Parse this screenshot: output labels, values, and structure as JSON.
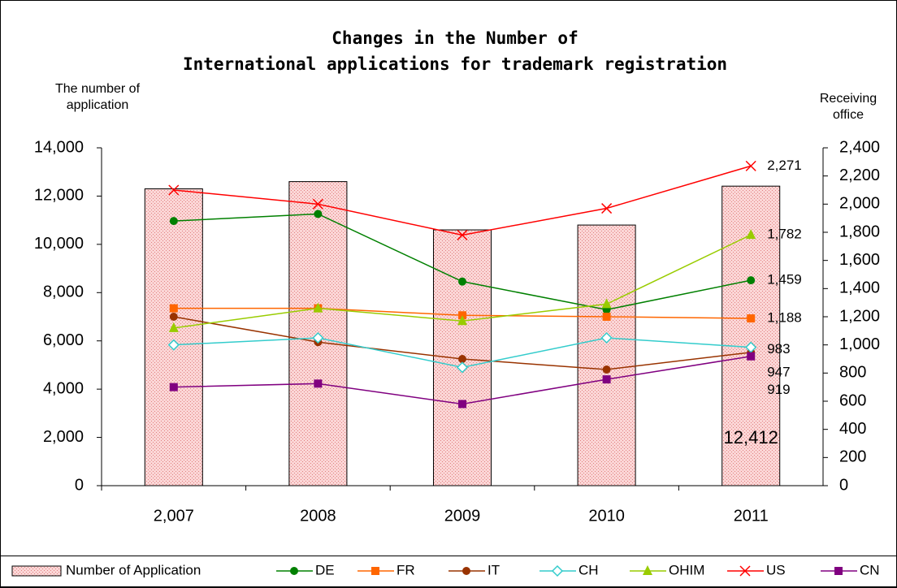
{
  "chart_data": {
    "type": "bar_line",
    "title": [
      "Changes in the Number of",
      "International applications for trademark registration"
    ],
    "y_label": [
      "The number of",
      "application"
    ],
    "y2_label": [
      "Receiving",
      "office"
    ],
    "categories": [
      "2,007",
      "2008",
      "2009",
      "2010",
      "2011"
    ],
    "ylim": [
      0,
      14000
    ],
    "yticks": [
      0,
      {
        "value": 2000,
        "label": "2,000"
      },
      {
        "value": 4000,
        "label": "4,000"
      },
      {
        "value": 6000,
        "label": "6,000"
      },
      {
        "value": 8000,
        "label": "8,000"
      },
      {
        "value": 10000,
        "label": "10,000"
      },
      {
        "value": 12000,
        "label": "12,000"
      },
      {
        "value": 14000,
        "label": "14,000"
      }
    ],
    "y2lim": [
      0,
      2400
    ],
    "y2ticks": [
      0,
      200,
      400,
      600,
      800,
      {
        "value": 1000,
        "label": "1,000"
      },
      {
        "value": 1200,
        "label": "1,200"
      },
      {
        "value": 1400,
        "label": "1,400"
      },
      {
        "value": 1600,
        "label": "1,600"
      },
      {
        "value": 1800,
        "label": "1,800"
      },
      {
        "value": 2000,
        "label": "2,000"
      },
      {
        "value": 2200,
        "label": "2,200"
      },
      {
        "value": 2400,
        "label": "2,400"
      }
    ],
    "series": [
      {
        "name": "Number of Application",
        "kind": "bar",
        "color": "#f4b8b8",
        "values": [
          12300,
          12600,
          10600,
          10800,
          12412
        ],
        "value_labels": [
          null,
          null,
          null,
          null,
          "12,412"
        ],
        "label_color": "#000000"
      },
      {
        "name": "DE",
        "kind": "line",
        "axis": "y2",
        "marker": "circle",
        "color": "#008000",
        "values": [
          1880,
          1930,
          1450,
          1250,
          1459
        ],
        "value_labels": [
          null,
          null,
          null,
          null,
          "1,459"
        ],
        "label_color": "#3a9a6a"
      },
      {
        "name": "FR",
        "kind": "line",
        "axis": "y2",
        "marker": "square",
        "color": "#ff6600",
        "values": [
          1260,
          1260,
          1210,
          1200,
          1188
        ],
        "value_labels": [
          null,
          null,
          null,
          null,
          "1,188"
        ],
        "label_color": "#ff8080"
      },
      {
        "name": "IT",
        "kind": "line",
        "axis": "y2",
        "marker": "circle",
        "color": "#993300",
        "values": [
          1200,
          1020,
          900,
          825,
          947
        ],
        "label_color": "#a0522d"
      },
      {
        "name": "CH",
        "kind": "line",
        "axis": "y2",
        "marker": "diamond",
        "color": "#33cccc",
        "values": [
          1000,
          1050,
          840,
          1050,
          983
        ],
        "label_color": "#000000"
      },
      {
        "name": "OHIM",
        "kind": "line",
        "axis": "y2",
        "marker": "triangle",
        "color": "#99cc00",
        "values": [
          1120,
          1260,
          1170,
          1290,
          1782
        ],
        "value_labels": [
          null,
          null,
          null,
          null,
          "1,782"
        ],
        "label_color": "#4d4d1a"
      },
      {
        "name": "US",
        "kind": "line",
        "axis": "y2",
        "marker": "x",
        "color": "#ff0000",
        "values": [
          2100,
          2000,
          1780,
          1970,
          2271
        ],
        "value_labels": [
          null,
          null,
          null,
          null,
          "2,271"
        ],
        "label_color": "#ff0000"
      },
      {
        "name": "CN",
        "kind": "line",
        "axis": "y2",
        "marker": "square",
        "color": "#800080",
        "values": [
          700,
          725,
          580,
          755,
          919
        ],
        "label_color": "#7070b0"
      }
    ]
  }
}
